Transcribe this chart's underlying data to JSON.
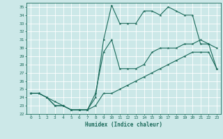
{
  "xlabel": "Humidex (Indice chaleur)",
  "bg_color": "#cce8e8",
  "line_color": "#1a6a5a",
  "grid_color": "#ffffff",
  "xlim": [
    -0.5,
    23.5
  ],
  "ylim": [
    22,
    35.5
  ],
  "yticks": [
    22,
    23,
    24,
    25,
    26,
    27,
    28,
    29,
    30,
    31,
    32,
    33,
    34,
    35
  ],
  "xticks": [
    0,
    1,
    2,
    3,
    4,
    5,
    6,
    7,
    8,
    9,
    10,
    11,
    12,
    13,
    14,
    15,
    16,
    17,
    18,
    19,
    20,
    21,
    22,
    23
  ],
  "curve1_x": [
    0,
    1,
    2,
    3,
    4,
    5,
    6,
    7,
    8,
    9,
    10,
    11,
    12,
    13,
    14,
    15,
    16,
    17,
    18,
    19,
    20,
    21,
    22,
    23
  ],
  "curve1_y": [
    24.5,
    24.5,
    24.0,
    23.0,
    23.0,
    22.5,
    22.5,
    22.5,
    24.0,
    31.0,
    35.2,
    33.0,
    33.0,
    33.0,
    34.5,
    34.5,
    34.0,
    35.0,
    34.5,
    34.0,
    34.0,
    30.5,
    30.5,
    30.0
  ],
  "curve2_x": [
    0,
    1,
    2,
    3,
    4,
    5,
    6,
    7,
    8,
    9,
    10,
    11,
    12,
    13,
    14,
    15,
    16,
    17,
    18,
    19,
    20,
    21,
    22,
    23
  ],
  "curve2_y": [
    24.5,
    24.5,
    24.0,
    23.0,
    23.0,
    22.5,
    22.5,
    22.5,
    24.5,
    29.5,
    31.0,
    27.5,
    27.5,
    27.5,
    28.0,
    29.5,
    30.0,
    30.0,
    30.0,
    30.5,
    30.5,
    31.0,
    30.5,
    27.5
  ],
  "curve3_x": [
    0,
    1,
    2,
    3,
    4,
    5,
    6,
    7,
    8,
    9,
    10,
    11,
    12,
    13,
    14,
    15,
    16,
    17,
    18,
    19,
    20,
    21,
    22,
    23
  ],
  "curve3_y": [
    24.5,
    24.5,
    24.0,
    23.5,
    23.0,
    22.5,
    22.5,
    22.5,
    23.0,
    24.5,
    24.5,
    25.0,
    25.5,
    26.0,
    26.5,
    27.0,
    27.5,
    28.0,
    28.5,
    29.0,
    29.5,
    29.5,
    29.5,
    27.5
  ]
}
